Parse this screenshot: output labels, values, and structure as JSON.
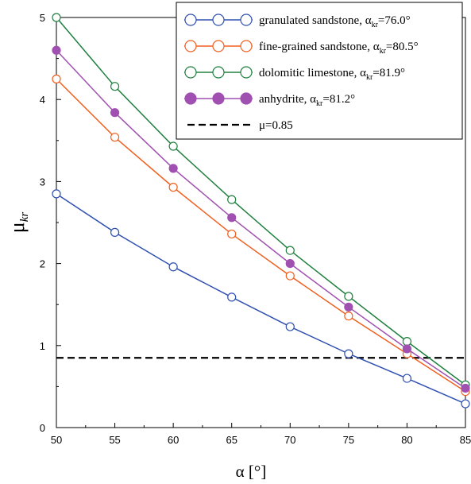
{
  "chart_data": {
    "type": "line",
    "xlabel": "α [°]",
    "ylabel": "μ",
    "ylabel_sub": "kr",
    "xlim": [
      50,
      85
    ],
    "ylim": [
      0,
      5
    ],
    "x_ticks": [
      "50",
      "55",
      "60",
      "65",
      "70",
      "75",
      "80",
      "85"
    ],
    "y_ticks": [
      "0",
      "1",
      "2",
      "3",
      "4",
      "5"
    ],
    "grid": false,
    "legend_position": "top-right",
    "x": [
      50,
      55,
      60,
      65,
      70,
      75,
      80,
      85
    ],
    "series": [
      {
        "label": "granulated sandstone, α",
        "sub": "kr",
        "tail": "=76.0°",
        "color": "#3050b0",
        "marker": "open-circle",
        "values": [
          2.85,
          2.38,
          1.96,
          1.59,
          1.23,
          0.9,
          0.6,
          0.29
        ]
      },
      {
        "label": "fine-grained sandstone, α",
        "sub": "kr",
        "tail": "=80.5°",
        "color": "#f06020",
        "marker": "open-circle",
        "values": [
          4.25,
          3.54,
          2.93,
          2.36,
          1.85,
          1.36,
          0.9,
          0.44
        ]
      },
      {
        "label": "dolomitic limestone, α",
        "sub": "kr",
        "tail": "=81.9°",
        "color": "#208040",
        "marker": "open-circle",
        "values": [
          5.0,
          4.16,
          3.43,
          2.78,
          2.16,
          1.6,
          1.05,
          0.52
        ]
      },
      {
        "label": "anhydrite, α",
        "sub": "kr",
        "tail": "=81.2°",
        "color": "#a050b0",
        "marker": "filled-circle",
        "values": [
          4.6,
          3.84,
          3.16,
          2.56,
          2.0,
          1.47,
          0.96,
          0.48
        ]
      }
    ],
    "reference_line": {
      "label": "μ=0.85",
      "value": 0.85,
      "color": "#000000",
      "style": "dashed"
    }
  }
}
